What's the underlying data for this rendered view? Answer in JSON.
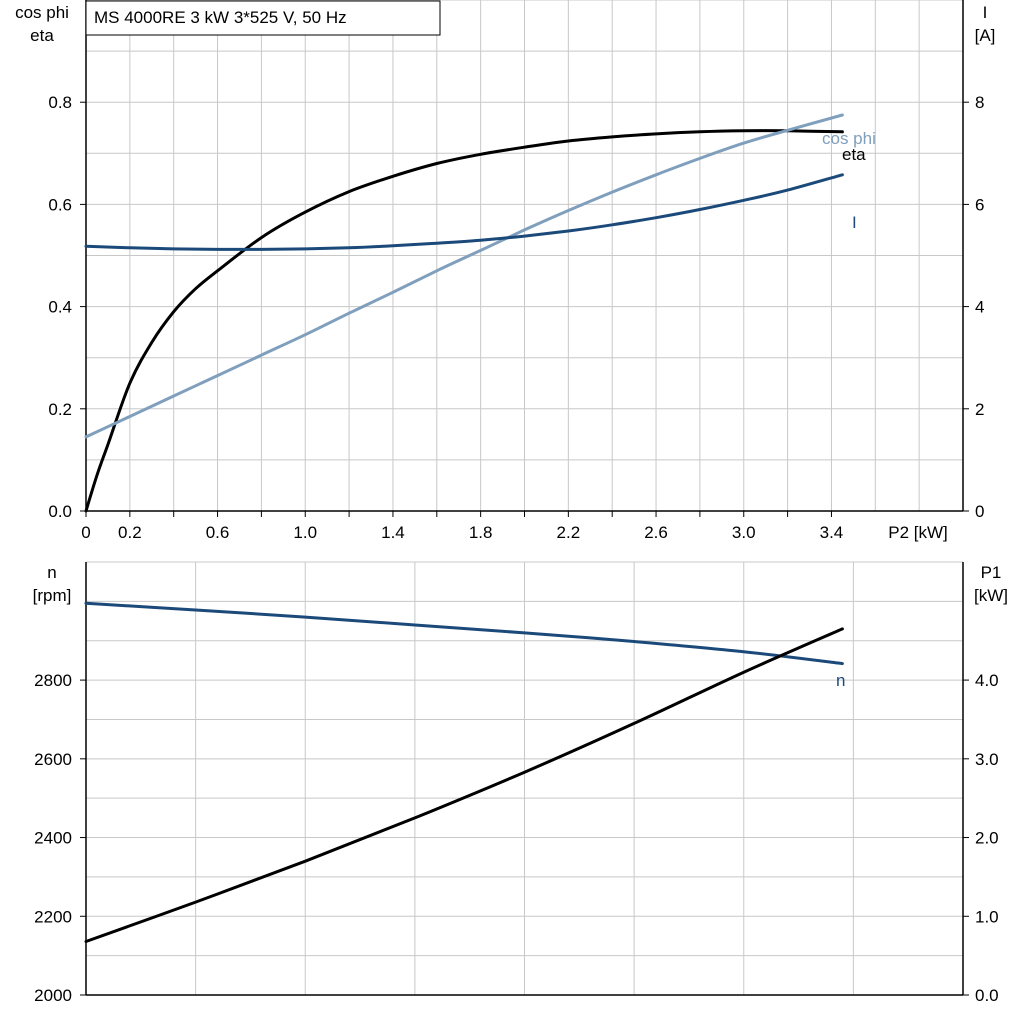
{
  "title": "MS 4000RE   3 kW   3*525 V, 50 Hz",
  "colors": {
    "black": "#000000",
    "dark_blue": "#1b4a7a",
    "light_blue": "#7f9fbd",
    "grid": "#c8c8c8"
  },
  "chart_data": [
    {
      "type": "line",
      "x_label": "P2 [kW]",
      "x_lim": [
        0,
        4.0
      ],
      "x_ticks": [
        "0",
        "0.2",
        "0.6",
        "1.0",
        "1.4",
        "1.8",
        "2.2",
        "2.6",
        "3.0",
        "3.4"
      ],
      "left_label_line1": "cos phi",
      "left_label_line2": "eta",
      "left_lim": [
        0,
        1.0
      ],
      "left_ticks": [
        "0.0",
        "0.2",
        "0.4",
        "0.6",
        "0.8"
      ],
      "right_label_line1": "I",
      "right_label_line2": "[A]",
      "right_lim": [
        0,
        10
      ],
      "right_ticks": [
        "0",
        "2",
        "4",
        "6",
        "8"
      ],
      "grid": true,
      "series": [
        {
          "name": "eta",
          "axis": "left",
          "color": "#000000",
          "x": [
            0,
            0.05,
            0.1,
            0.2,
            0.3,
            0.4,
            0.5,
            0.6,
            0.8,
            1.0,
            1.2,
            1.4,
            1.6,
            1.8,
            2.0,
            2.2,
            2.4,
            2.6,
            2.8,
            3.0,
            3.2,
            3.45
          ],
          "y": [
            0.0,
            0.07,
            0.13,
            0.25,
            0.33,
            0.39,
            0.435,
            0.47,
            0.535,
            0.585,
            0.625,
            0.655,
            0.68,
            0.698,
            0.712,
            0.724,
            0.732,
            0.738,
            0.742,
            0.744,
            0.744,
            0.742
          ]
        },
        {
          "name": "cos phi",
          "axis": "left",
          "color": "#7f9fbd",
          "x": [
            0,
            0.2,
            0.4,
            0.6,
            0.8,
            1.0,
            1.2,
            1.4,
            1.6,
            1.8,
            2.0,
            2.2,
            2.4,
            2.6,
            2.8,
            3.0,
            3.2,
            3.45
          ],
          "y": [
            0.145,
            0.185,
            0.225,
            0.265,
            0.305,
            0.345,
            0.387,
            0.428,
            0.47,
            0.51,
            0.55,
            0.588,
            0.624,
            0.658,
            0.69,
            0.72,
            0.745,
            0.775
          ]
        },
        {
          "name": "I",
          "axis": "right",
          "color": "#1b4a7a",
          "x": [
            0,
            0.2,
            0.4,
            0.6,
            0.8,
            1.0,
            1.2,
            1.4,
            1.6,
            1.8,
            2.0,
            2.2,
            2.4,
            2.6,
            2.8,
            3.0,
            3.2,
            3.45
          ],
          "y": [
            5.18,
            5.15,
            5.13,
            5.12,
            5.12,
            5.13,
            5.15,
            5.19,
            5.24,
            5.3,
            5.38,
            5.48,
            5.6,
            5.74,
            5.9,
            6.08,
            6.28,
            6.58
          ]
        }
      ]
    },
    {
      "type": "line",
      "x_lim": [
        0,
        4.0
      ],
      "left_label_line1": "n",
      "left_label_line2": "[rpm]",
      "left_lim": [
        2000,
        3100
      ],
      "left_ticks": [
        "2000",
        "2200",
        "2400",
        "2600",
        "2800"
      ],
      "right_label_line1": "P1",
      "right_label_line2": "[kW]",
      "right_lim": [
        0,
        5.5
      ],
      "right_ticks": [
        "0.0",
        "1.0",
        "2.0",
        "3.0",
        "4.0"
      ],
      "grid": true,
      "series": [
        {
          "name": "n",
          "axis": "left",
          "color": "#1b4a7a",
          "x": [
            0,
            0.5,
            1.0,
            1.5,
            2.0,
            2.5,
            3.0,
            3.45
          ],
          "y": [
            2995,
            2978,
            2960,
            2940,
            2920,
            2898,
            2872,
            2842
          ]
        },
        {
          "name": "P1",
          "axis": "right",
          "color": "#000000",
          "x": [
            0,
            0.5,
            1.0,
            1.5,
            2.0,
            2.5,
            3.0,
            3.45
          ],
          "y": [
            0.68,
            1.18,
            1.7,
            2.25,
            2.83,
            3.45,
            4.1,
            4.65
          ]
        }
      ]
    }
  ]
}
